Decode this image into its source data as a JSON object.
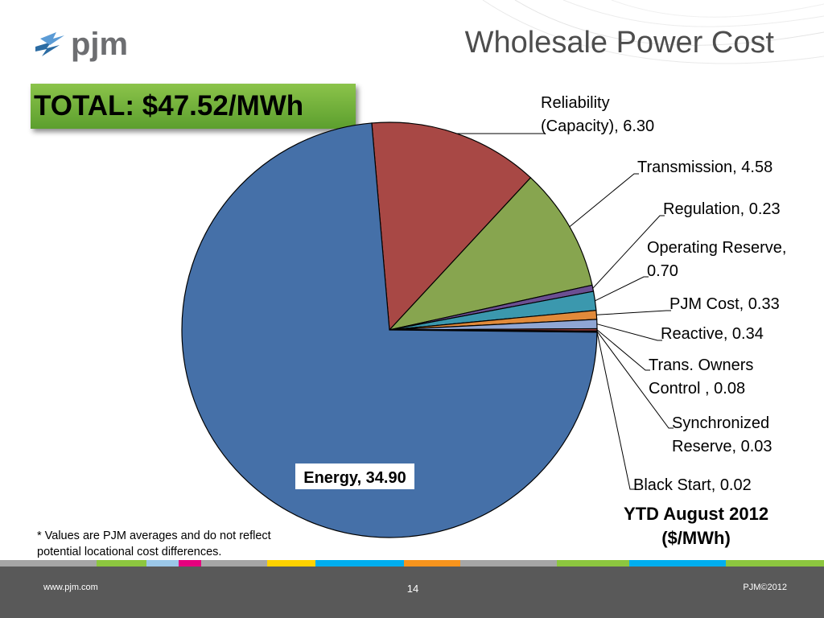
{
  "slide": {
    "title": "Wholesale Power Cost",
    "total_label": "TOTAL: $47.52/MWh",
    "footnote_line1": "* Values are PJM averages and do not reflect",
    "footnote_line2": "potential locational cost differences.",
    "caption_line1": "YTD August 2012",
    "caption_line2": "($/MWh)"
  },
  "logo": {
    "text": "pjm"
  },
  "footer": {
    "url": "www.pjm.com",
    "page": "14",
    "copyright": "PJM©2012"
  },
  "colors": {
    "footer_bg": "#595959",
    "stripe": [
      "#a6a6a6",
      "#8cc63f",
      "#9bc7e8",
      "#e6007e",
      "#a6a6a6",
      "#ffd200",
      "#00aeef",
      "#f7941d",
      "#a6a6a6",
      "#8cc63f",
      "#00aeef",
      "#8cc63f"
    ]
  },
  "chart_data": {
    "type": "pie",
    "title": "",
    "unit": "$/MWh",
    "slices": [
      {
        "label": "Reliability (Capacity)",
        "value": 6.3,
        "color": "#a84845"
      },
      {
        "label": "Transmission",
        "value": 4.58,
        "color": "#87a54f"
      },
      {
        "label": "Regulation",
        "value": 0.23,
        "color": "#6b4f92"
      },
      {
        "label": "Operating Reserve",
        "value": 0.7,
        "color": "#3b98ae"
      },
      {
        "label": "PJM Cost",
        "value": 0.33,
        "color": "#e18a3a"
      },
      {
        "label": "Reactive",
        "value": 0.34,
        "color": "#8fa6d4"
      },
      {
        "label": "Trans. Owners Control",
        "value": 0.08,
        "color": "#c0504d"
      },
      {
        "label": "Synchronized Reserve",
        "value": 0.03,
        "color": "#9bbb59"
      },
      {
        "label": "Black Start",
        "value": 0.02,
        "color": "#8064a2"
      },
      {
        "label": "Energy",
        "value": 34.9,
        "color": "#4570a8"
      }
    ],
    "labels": [
      {
        "line1": "Reliability",
        "line2": "(Capacity),  6.30"
      },
      {
        "line1": "Transmission,  4.58",
        "line2": ""
      },
      {
        "line1": "Regulation,  0.23",
        "line2": ""
      },
      {
        "line1": "Operating Reserve,",
        "line2": "0.70"
      },
      {
        "line1": "PJM Cost,  0.33",
        "line2": ""
      },
      {
        "line1": "Reactive,  0.34",
        "line2": ""
      },
      {
        "line1": "Trans.          Owners",
        "line2": "Control ,  0.08"
      },
      {
        "line1": "Synchronized",
        "line2": "Reserve,  0.03"
      },
      {
        "line1": "Black Start,  0.02",
        "line2": ""
      },
      {
        "line1": "Energy,  34.90",
        "line2": ""
      }
    ],
    "legend": "none"
  }
}
